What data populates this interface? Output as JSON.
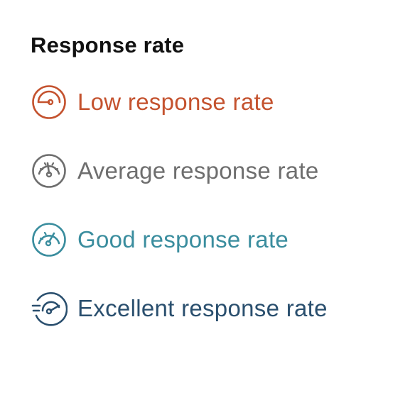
{
  "header": {
    "title": "Response rate"
  },
  "legend": {
    "items": [
      {
        "label": "Low response rate",
        "icon": "gauge-low-icon",
        "color": "#c4522e"
      },
      {
        "label": "Average response rate",
        "icon": "gauge-average-icon",
        "color": "#6e6e6e"
      },
      {
        "label": "Good response rate",
        "icon": "gauge-good-icon",
        "color": "#3a8d9e"
      },
      {
        "label": "Excellent response rate",
        "icon": "gauge-excellent-icon",
        "color": "#2a4f6e"
      }
    ]
  }
}
